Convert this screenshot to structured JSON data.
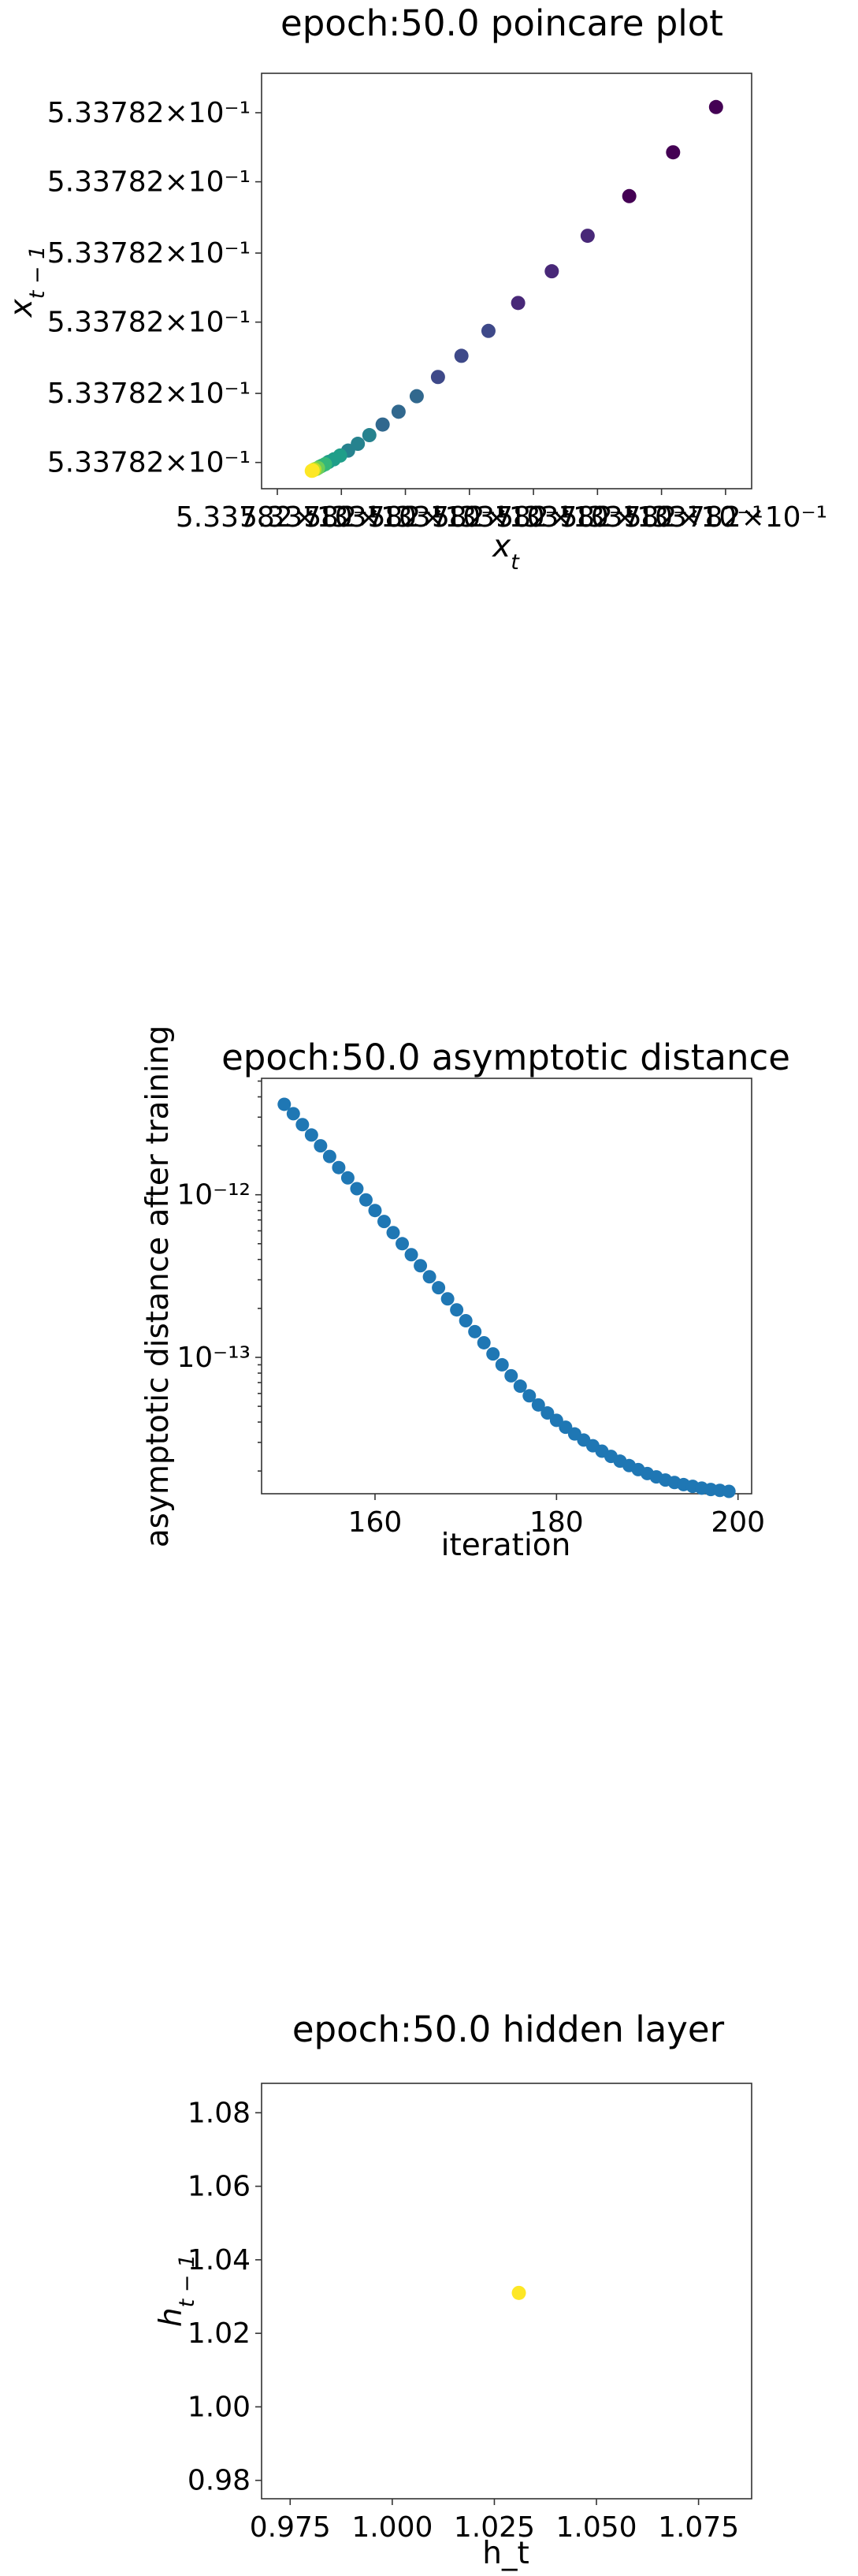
{
  "chart_data": [
    {
      "type": "scatter",
      "title": "epoch:50.0 poincare plot",
      "xlabel": "x_t",
      "ylabel": "x_{t-1}",
      "colormap": "viridis",
      "scale": "log",
      "xticks": [
        "5.33782×10⁻¹",
        "5.33782×10⁻¹",
        "5.33782×10⁻¹",
        "5.33782×10⁻¹",
        "5.33782×10⁻¹",
        "5.33782×10⁻¹",
        "5.33782×10⁻¹",
        "5.33782×10⁻¹"
      ],
      "yticks": [
        "5.33782×10⁻¹",
        "5.33782×10⁻¹",
        "5.33782×10⁻¹",
        "5.33782×10⁻¹",
        "5.33782×10⁻¹",
        "5.33782×10⁻¹"
      ],
      "xlim": [
        0.0,
        1.0
      ],
      "ylim": [
        0.0,
        1.0
      ],
      "points": [
        [
          0.973,
          0.965
        ],
        [
          0.876,
          0.845
        ],
        [
          0.777,
          0.729
        ],
        [
          0.683,
          0.624
        ],
        [
          0.602,
          0.53
        ],
        [
          0.526,
          0.446
        ],
        [
          0.459,
          0.372
        ],
        [
          0.398,
          0.306
        ],
        [
          0.345,
          0.25
        ],
        [
          0.297,
          0.199
        ],
        [
          0.256,
          0.158
        ],
        [
          0.22,
          0.124
        ],
        [
          0.19,
          0.096
        ],
        [
          0.164,
          0.073
        ],
        [
          0.142,
          0.055
        ],
        [
          0.124,
          0.042
        ],
        [
          0.11,
          0.032
        ],
        [
          0.098,
          0.025
        ],
        [
          0.09,
          0.019
        ],
        [
          0.083,
          0.015
        ],
        [
          0.078,
          0.012
        ],
        [
          0.074,
          0.009
        ],
        [
          0.071,
          0.007
        ],
        [
          0.068,
          0.006
        ],
        [
          0.066,
          0.005
        ],
        [
          0.064,
          0.004
        ],
        [
          0.063,
          0.003
        ],
        [
          0.062,
          0.0025
        ],
        [
          0.061,
          0.002
        ],
        [
          0.06,
          0.0015
        ]
      ]
    },
    {
      "type": "scatter",
      "title": "epoch:50.0 asymptotic distance",
      "xlabel": "iteration",
      "ylabel": "asymptotic distance after training",
      "color": "#1f77b4",
      "yscale": "log",
      "xlim": [
        147.5,
        201.5
      ],
      "ylim": [
        1.45e-14,
        5.2e-12
      ],
      "xticks": [
        160,
        180,
        200
      ],
      "yticks": [
        {
          "value": 1e-12,
          "label": "10⁻¹²"
        },
        {
          "value": 1e-13,
          "label": "10⁻¹³"
        }
      ],
      "x": [
        150,
        151,
        152,
        153,
        154,
        155,
        156,
        157,
        158,
        159,
        160,
        161,
        162,
        163,
        164,
        165,
        166,
        167,
        168,
        169,
        170,
        171,
        172,
        173,
        174,
        175,
        176,
        177,
        178,
        179,
        180,
        181,
        182,
        183,
        184,
        185,
        186,
        187,
        188,
        189,
        190,
        191,
        192,
        193,
        194,
        195,
        196,
        197,
        198,
        199
      ],
      "y": [
        3.6e-12,
        3.15e-12,
        2.7e-12,
        2.33e-12,
        2e-12,
        1.72e-12,
        1.47e-12,
        1.27e-12,
        1.09e-12,
        9.3e-13,
        8e-13,
        6.85e-13,
        5.85e-13,
        5e-13,
        4.28e-13,
        3.66e-13,
        3.13e-13,
        2.68e-13,
        2.29e-13,
        1.96e-13,
        1.68e-13,
        1.44e-13,
        1.23e-13,
        1.05e-13,
        9e-14,
        7.7e-14,
        6.65e-14,
        5.8e-14,
        5.1e-14,
        4.55e-14,
        4.1e-14,
        3.72e-14,
        3.38e-14,
        3.1e-14,
        2.86e-14,
        2.65e-14,
        2.46e-14,
        2.3e-14,
        2.16e-14,
        2.04e-14,
        1.93e-14,
        1.84e-14,
        1.76e-14,
        1.7e-14,
        1.65e-14,
        1.61e-14,
        1.57e-14,
        1.54e-14,
        1.52e-14,
        1.5e-14
      ]
    },
    {
      "type": "scatter",
      "title": "epoch:50.0 hidden layer",
      "xlabel": "h_t",
      "ylabel": "h_{t-1}",
      "color": "#fde725",
      "xlim": [
        0.968,
        1.088
      ],
      "ylim": [
        0.975,
        1.088
      ],
      "xticks": [
        {
          "value": 0.975,
          "label": "0.975"
        },
        {
          "value": 1.0,
          "label": "1.000"
        },
        {
          "value": 1.025,
          "label": "1.025"
        },
        {
          "value": 1.05,
          "label": "1.050"
        },
        {
          "value": 1.075,
          "label": "1.075"
        }
      ],
      "yticks": [
        {
          "value": 0.98,
          "label": "0.98"
        },
        {
          "value": 1.0,
          "label": "1.00"
        },
        {
          "value": 1.02,
          "label": "1.02"
        },
        {
          "value": 1.04,
          "label": "1.04"
        },
        {
          "value": 1.06,
          "label": "1.06"
        },
        {
          "value": 1.08,
          "label": "1.08"
        }
      ],
      "points": [
        [
          1.031,
          1.031
        ]
      ]
    }
  ]
}
